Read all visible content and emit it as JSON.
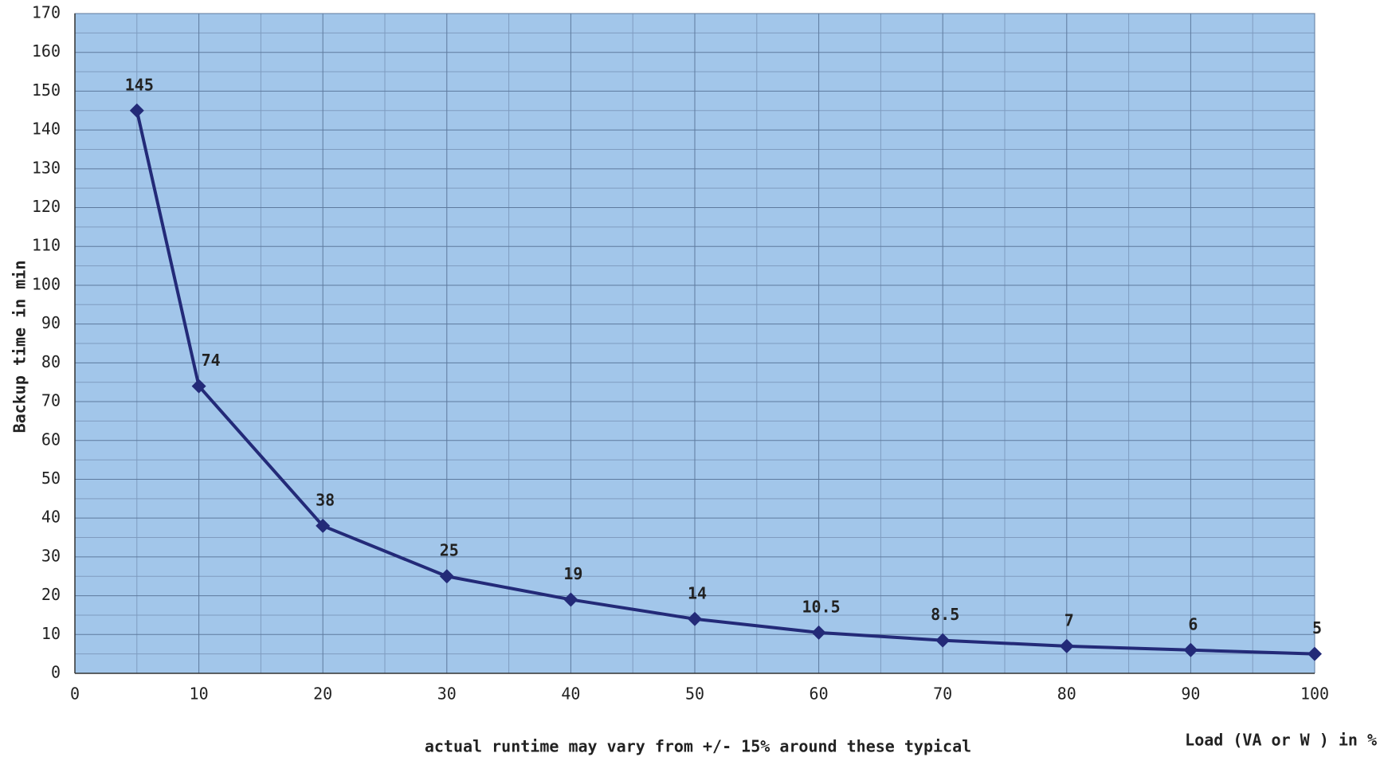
{
  "chart_data": {
    "type": "line",
    "x_label": "Load (VA or W ) in %",
    "y_label": "Backup time in min",
    "note": "actual runtime may vary from +/- 15% around these typical",
    "x": [
      5,
      10,
      20,
      30,
      40,
      50,
      60,
      70,
      80,
      90,
      100
    ],
    "series": [
      {
        "name": "Backup time",
        "color": "#232a78",
        "values": [
          145,
          74,
          38,
          25,
          19,
          14,
          10.5,
          8.5,
          7,
          6,
          5
        ]
      }
    ],
    "xlim": [
      0,
      100
    ],
    "xticks": [
      0,
      10,
      20,
      30,
      40,
      50,
      60,
      70,
      80,
      90,
      100
    ],
    "ylim": [
      0,
      170
    ],
    "yticks": [
      0,
      10,
      20,
      30,
      40,
      50,
      60,
      70,
      80,
      90,
      100,
      110,
      120,
      130,
      140,
      150,
      160,
      170
    ],
    "grid": true,
    "minor_grid": true,
    "background": "#a2c6ea"
  }
}
